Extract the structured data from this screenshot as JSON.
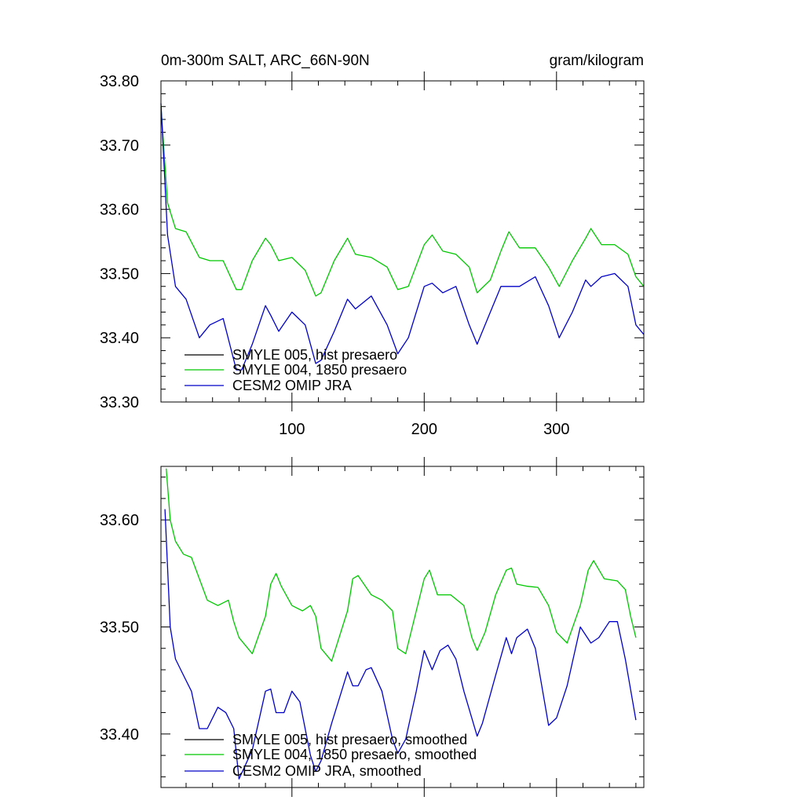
{
  "chart_data": [
    {
      "type": "line",
      "title_left": "0m-300m SALT, ARC_66N-90N",
      "title_right": "gram/kilogram",
      "xlabel": "",
      "ylabel": "",
      "xlim": [
        1,
        366
      ],
      "ylim": [
        33.3,
        33.8
      ],
      "xticks": [
        100,
        200,
        300
      ],
      "xtick_labels": [
        "100",
        "200",
        "300"
      ],
      "yticks": [
        33.3,
        33.4,
        33.5,
        33.6,
        33.7,
        33.8
      ],
      "ytick_labels": [
        "33.30",
        "33.40",
        "33.50",
        "33.60",
        "33.70",
        "33.80"
      ],
      "grid": false,
      "legend_position": "bottom-left",
      "series": [
        {
          "name": "SMYLE 005, hist presaero",
          "color": "#000000",
          "x": [],
          "y": []
        },
        {
          "name": "SMYLE 004, 1850 presaero",
          "color": "#00c800",
          "x": [
            1,
            6,
            12,
            20,
            30,
            38,
            48,
            58,
            62,
            70,
            80,
            84,
            90,
            100,
            110,
            118,
            122,
            132,
            142,
            148,
            160,
            172,
            180,
            188,
            200,
            206,
            214,
            224,
            234,
            240,
            250,
            258,
            264,
            272,
            284,
            294,
            302,
            312,
            322,
            326,
            334,
            344,
            354,
            360,
            366
          ],
          "y": [
            33.76,
            33.61,
            33.57,
            33.565,
            33.525,
            33.52,
            33.52,
            33.475,
            33.475,
            33.52,
            33.555,
            33.545,
            33.52,
            33.525,
            33.505,
            33.465,
            33.47,
            33.52,
            33.555,
            33.53,
            33.525,
            33.51,
            33.475,
            33.48,
            33.545,
            33.56,
            33.535,
            33.53,
            33.51,
            33.47,
            33.49,
            33.535,
            33.565,
            33.54,
            33.54,
            33.51,
            33.48,
            33.52,
            33.555,
            33.57,
            33.545,
            33.545,
            33.53,
            33.495,
            33.48
          ]
        },
        {
          "name": "CESM2 OMIP JRA",
          "color": "#0000c8",
          "x": [
            1,
            6,
            12,
            20,
            30,
            38,
            48,
            58,
            62,
            70,
            80,
            84,
            90,
            100,
            110,
            118,
            122,
            132,
            142,
            148,
            160,
            172,
            180,
            188,
            200,
            206,
            214,
            224,
            234,
            240,
            250,
            258,
            264,
            272,
            284,
            294,
            302,
            312,
            322,
            326,
            334,
            344,
            354,
            360,
            366
          ],
          "y": [
            33.765,
            33.56,
            33.48,
            33.46,
            33.4,
            33.42,
            33.43,
            33.35,
            33.35,
            33.39,
            33.45,
            33.435,
            33.41,
            33.44,
            33.42,
            33.36,
            33.365,
            33.41,
            33.46,
            33.445,
            33.465,
            33.42,
            33.375,
            33.4,
            33.48,
            33.485,
            33.47,
            33.48,
            33.42,
            33.39,
            33.44,
            33.48,
            33.48,
            33.48,
            33.495,
            33.45,
            33.4,
            33.44,
            33.49,
            33.48,
            33.495,
            33.5,
            33.48,
            33.42,
            33.405
          ]
        }
      ],
      "legend": [
        "SMYLE 005, hist presaero",
        "SMYLE 004, 1850 presaero",
        "CESM2 OMIP JRA"
      ]
    },
    {
      "type": "line",
      "title_left": "",
      "title_right": "",
      "xlabel": "",
      "ylabel": "",
      "xlim": [
        1,
        366
      ],
      "ylim": [
        33.35,
        33.65
      ],
      "xticks": [
        100,
        200,
        300
      ],
      "xtick_labels": [],
      "yticks": [
        33.4,
        33.5,
        33.6
      ],
      "ytick_labels": [
        "33.40",
        "33.50",
        "33.60"
      ],
      "grid": false,
      "legend_position": "bottom-left",
      "series": [
        {
          "name": "SMYLE 005, hist presaero, smoothed",
          "color": "#000000",
          "x": [],
          "y": []
        },
        {
          "name": "SMYLE 004, 1850 presaero, smoothed",
          "color": "#00c800",
          "x": [
            5,
            8,
            12,
            18,
            24,
            30,
            36,
            44,
            52,
            56,
            60,
            70,
            80,
            84,
            88,
            92,
            100,
            108,
            114,
            118,
            122,
            130,
            142,
            146,
            150,
            160,
            168,
            176,
            180,
            186,
            194,
            200,
            204,
            210,
            220,
            230,
            236,
            240,
            246,
            254,
            262,
            266,
            270,
            278,
            286,
            294,
            300,
            308,
            318,
            324,
            328,
            336,
            346,
            352,
            356,
            360
          ],
          "y": [
            33.648,
            33.6,
            33.58,
            33.568,
            33.565,
            33.545,
            33.525,
            33.52,
            33.525,
            33.505,
            33.49,
            33.475,
            33.51,
            33.54,
            33.55,
            33.538,
            33.52,
            33.515,
            33.52,
            33.51,
            33.48,
            33.468,
            33.515,
            33.545,
            33.548,
            33.53,
            33.525,
            33.515,
            33.48,
            33.475,
            33.515,
            33.545,
            33.553,
            33.53,
            33.53,
            33.52,
            33.49,
            33.478,
            33.495,
            33.53,
            33.553,
            33.555,
            33.54,
            33.538,
            33.537,
            33.52,
            33.495,
            33.485,
            33.52,
            33.553,
            33.562,
            33.545,
            33.543,
            33.535,
            33.51,
            33.49
          ]
        },
        {
          "name": "CESM2 OMIP JRA, smoothed",
          "color": "#0000c8",
          "x": [
            4,
            8,
            12,
            18,
            24,
            30,
            36,
            44,
            50,
            56,
            60,
            70,
            80,
            84,
            88,
            94,
            100,
            106,
            114,
            118,
            122,
            130,
            142,
            146,
            150,
            156,
            160,
            168,
            176,
            180,
            186,
            194,
            200,
            206,
            212,
            218,
            224,
            230,
            240,
            244,
            254,
            262,
            266,
            270,
            278,
            284,
            294,
            300,
            308,
            318,
            326,
            332,
            340,
            346,
            352,
            360
          ],
          "y": [
            33.61,
            33.5,
            33.47,
            33.455,
            33.44,
            33.405,
            33.405,
            33.425,
            33.42,
            33.405,
            33.358,
            33.385,
            33.44,
            33.442,
            33.42,
            33.42,
            33.44,
            33.43,
            33.38,
            33.365,
            33.375,
            33.41,
            33.458,
            33.445,
            33.445,
            33.46,
            33.462,
            33.44,
            33.395,
            33.382,
            33.395,
            33.44,
            33.478,
            33.46,
            33.478,
            33.483,
            33.47,
            33.44,
            33.398,
            33.41,
            33.455,
            33.49,
            33.475,
            33.49,
            33.498,
            33.48,
            33.408,
            33.415,
            33.445,
            33.5,
            33.485,
            33.49,
            33.505,
            33.505,
            33.47,
            33.413
          ]
        }
      ],
      "legend": [
        "SMYLE 005, hist presaero, smoothed",
        "SMYLE 004, 1850 presaero, smoothed",
        "CESM2 OMIP JRA, smoothed"
      ]
    }
  ]
}
